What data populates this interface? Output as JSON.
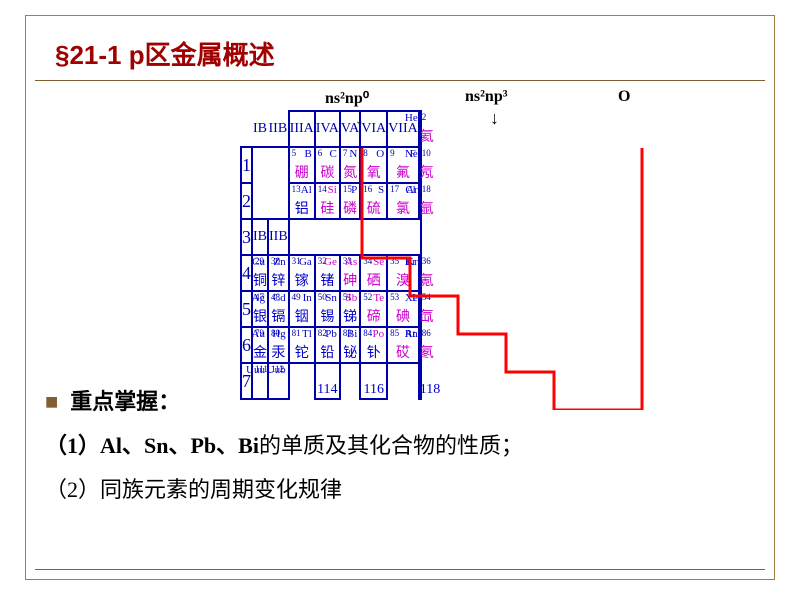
{
  "title": "§21-1 p区金属概述",
  "annotations": {
    "left": "ns²np⁰",
    "right": "ns²np³",
    "corner": "O"
  },
  "headers": {
    "groups": [
      "IB",
      "IIB",
      "IIIA",
      "IVA",
      "VA",
      "VIA",
      "VIIA",
      ""
    ],
    "rows": [
      "1",
      "2",
      "3",
      "4",
      "5",
      "6",
      "7"
    ]
  },
  "elements": {
    "r1c7": {
      "num": "2",
      "sym": "He",
      "nm": "氦",
      "sc": "blue",
      "nc": "mag"
    },
    "r2c2": {
      "num": "5",
      "sym": "B",
      "nm": "硼",
      "sc": "blue",
      "nc": "mag"
    },
    "r2c3": {
      "num": "6",
      "sym": "C",
      "nm": "碳",
      "sc": "blue",
      "nc": "mag"
    },
    "r2c4": {
      "num": "7",
      "sym": "N",
      "nm": "氮",
      "sc": "blue",
      "nc": "mag"
    },
    "r2c5": {
      "num": "8",
      "sym": "O",
      "nm": "氧",
      "sc": "blue",
      "nc": "mag"
    },
    "r2c6": {
      "num": "9",
      "sym": "F",
      "nm": "氟",
      "sc": "blue",
      "nc": "mag"
    },
    "r2c7": {
      "num": "10",
      "sym": "Ne",
      "nm": "氖",
      "sc": "blue",
      "nc": "mag"
    },
    "r3c2": {
      "num": "13",
      "sym": "Al",
      "nm": "铝",
      "sc": "blue",
      "nc": "blue"
    },
    "r3c3": {
      "num": "14",
      "sym": "Si",
      "nm": "硅",
      "sc": "mag",
      "nc": "mag"
    },
    "r3c4": {
      "num": "15",
      "sym": "P",
      "nm": "磷",
      "sc": "blue",
      "nc": "mag"
    },
    "r3c5": {
      "num": "16",
      "sym": "S",
      "nm": "硫",
      "sc": "blue",
      "nc": "mag"
    },
    "r3c6": {
      "num": "17",
      "sym": "Cl",
      "nm": "氯",
      "sc": "blue",
      "nc": "mag"
    },
    "r3c7": {
      "num": "18",
      "sym": "Ar",
      "nm": "氩",
      "sc": "blue",
      "nc": "mag"
    },
    "r4c0": {
      "num": "29",
      "sym": "Cu",
      "nm": "铜",
      "sc": "blue",
      "nc": "blue"
    },
    "r4c1": {
      "num": "30",
      "sym": "Zn",
      "nm": "锌",
      "sc": "blue",
      "nc": "blue"
    },
    "r4c2": {
      "num": "31",
      "sym": "Ga",
      "nm": "镓",
      "sc": "blue",
      "nc": "blue"
    },
    "r4c3": {
      "num": "32",
      "sym": "Ge",
      "nm": "锗",
      "sc": "mag",
      "nc": "blue"
    },
    "r4c4": {
      "num": "33",
      "sym": "As",
      "nm": "砷",
      "sc": "mag",
      "nc": "mag"
    },
    "r4c5": {
      "num": "34",
      "sym": "Se",
      "nm": "硒",
      "sc": "mag",
      "nc": "mag"
    },
    "r4c6": {
      "num": "35",
      "sym": "Br",
      "nm": "溴",
      "sc": "blue",
      "nc": "mag"
    },
    "r4c7": {
      "num": "36",
      "sym": "Kr",
      "nm": "氪",
      "sc": "blue",
      "nc": "mag"
    },
    "r5c0": {
      "num": "47",
      "sym": "Ag",
      "nm": "银",
      "sc": "blue",
      "nc": "blue"
    },
    "r5c1": {
      "num": "48",
      "sym": "Cd",
      "nm": "镉",
      "sc": "blue",
      "nc": "blue"
    },
    "r5c2": {
      "num": "49",
      "sym": "In",
      "nm": "铟",
      "sc": "blue",
      "nc": "blue"
    },
    "r5c3": {
      "num": "50",
      "sym": "Sn",
      "nm": "锡",
      "sc": "blue",
      "nc": "blue"
    },
    "r5c4": {
      "num": "51",
      "sym": "Sb",
      "nm": "锑",
      "sc": "mag",
      "nc": "blue"
    },
    "r5c5": {
      "num": "52",
      "sym": "Te",
      "nm": "碲",
      "sc": "mag",
      "nc": "mag"
    },
    "r5c6": {
      "num": "53",
      "sym": "I",
      "nm": "碘",
      "sc": "blue",
      "nc": "mag"
    },
    "r5c7": {
      "num": "54",
      "sym": "Xe",
      "nm": "氙",
      "sc": "blue",
      "nc": "mag"
    },
    "r6c0": {
      "num": "79",
      "sym": "Au",
      "nm": "金",
      "sc": "blue",
      "nc": "blue"
    },
    "r6c1": {
      "num": "80",
      "sym": "Hg",
      "nm": "汞",
      "sc": "blue",
      "nc": "blue"
    },
    "r6c2": {
      "num": "81",
      "sym": "Tl",
      "nm": "铊",
      "sc": "blue",
      "nc": "blue"
    },
    "r6c3": {
      "num": "82",
      "sym": "Pb",
      "nm": "铅",
      "sc": "blue",
      "nc": "blue"
    },
    "r6c4": {
      "num": "83",
      "sym": "Bi",
      "nm": "铋",
      "sc": "blue",
      "nc": "blue"
    },
    "r6c5": {
      "num": "84",
      "sym": "Po",
      "nm": "钋",
      "sc": "mag",
      "nc": "blue"
    },
    "r6c6": {
      "num": "85",
      "sym": "At",
      "nm": "砹",
      "sc": "blue",
      "nc": "mag"
    },
    "r6c7": {
      "num": "86",
      "sym": "Rn",
      "nm": "氡",
      "sc": "blue",
      "nc": "mag"
    },
    "r7c0": {
      "num": "111",
      "sym": "Uuu",
      "nm": "",
      "sc": "blue",
      "nc": "blue"
    },
    "r7c1": {
      "num": "112",
      "sym": "Uub",
      "nm": "",
      "sc": "blue",
      "nc": "blue"
    },
    "r7c3": {
      "num": "",
      "sym": "",
      "nm": "114",
      "sc": "blue",
      "nc": "blue"
    },
    "r7c5": {
      "num": "",
      "sym": "",
      "nm": "116",
      "sc": "blue",
      "nc": "blue"
    },
    "r7c7": {
      "num": "",
      "sym": "",
      "nm": "118",
      "sc": "blue",
      "nc": "blue"
    }
  },
  "content": {
    "heading": "重点掌握：",
    "line1_pre": "（1）",
    "line1_bold": "Al、Sn、Pb、Bi",
    "line1_post": "的单质及其化合物的性质；",
    "line2": "（2）同族元素的周期变化规律"
  },
  "style": {
    "border_color": "#0000aa",
    "stair_color": "#ff0000",
    "title_color": "#a00000",
    "frame_color": "#a08040"
  }
}
